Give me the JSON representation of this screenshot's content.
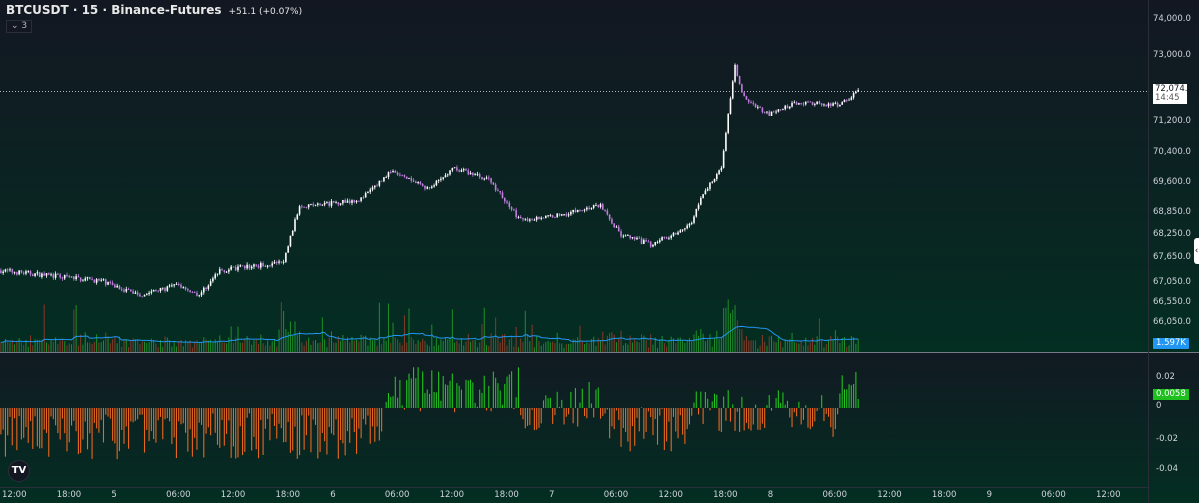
{
  "header": {
    "symbol_line": "BTCUSDT · 15 · Binance-Futures",
    "change": "+51.1 (+0.07%)",
    "indicators_toggle": "⌄ 3"
  },
  "colors": {
    "up": "#ffffff",
    "down": "#c27ce0",
    "vol_up": "#26a62a",
    "vol_down": "#a63d2a",
    "vol_ma": "#2196f3",
    "osc_pos": "#22c21f",
    "osc_neg": "#e8681f"
  },
  "chart_data": {
    "type": "candlestick",
    "price_axis": {
      "ticks": [
        "74,000.0",
        "73,000.0",
        "71,200.0",
        "70,400.0",
        "69,600.0",
        "68,850.0",
        "68,250.0",
        "67,650.0",
        "67,050.0",
        "66,550.0",
        "66,050.0"
      ],
      "last_price": "72,074.7",
      "countdown": "14:45",
      "last_price_value": 72074.7
    },
    "time_axis": {
      "ticks": [
        "12:00",
        "18:00",
        "5",
        "06:00",
        "12:00",
        "18:00",
        "6",
        "06:00",
        "12:00",
        "18:00",
        "7",
        "06:00",
        "12:00",
        "18:00",
        "8",
        "06:00",
        "12:00",
        "18:00",
        "9",
        "06:00",
        "12:00"
      ]
    },
    "price_path": [
      [
        "4 11:00",
        67350
      ],
      [
        "4 22:00",
        67100
      ],
      [
        "5 02:15",
        66750
      ],
      [
        "5 06:30",
        67000
      ],
      [
        "5 08:45",
        66750
      ],
      [
        "5 11:00",
        67350
      ],
      [
        "5 18:00",
        67550
      ],
      [
        "5 19:45",
        69050
      ],
      [
        "5 22:00",
        69050
      ],
      [
        "6 02:30",
        69200
      ],
      [
        "6 05:45",
        69900
      ],
      [
        "6 10:00",
        69450
      ],
      [
        "6 12:45",
        70000
      ],
      [
        "6 16:30",
        69700
      ],
      [
        "6 20:00",
        68650
      ],
      [
        "7 00:15",
        68800
      ],
      [
        "7 04:45",
        69050
      ],
      [
        "7 07:00",
        68250
      ],
      [
        "7 10:15",
        68000
      ],
      [
        "7 14:30",
        68500
      ],
      [
        "7 15:45",
        69200
      ],
      [
        "7 18:00",
        70050
      ],
      [
        "7 19:30",
        72700
      ],
      [
        "7 20:30",
        71850
      ],
      [
        "7 23:15",
        71400
      ],
      [
        "8 02:30",
        71750
      ],
      [
        "8 07:00",
        71650
      ],
      [
        "8 09:00",
        72074.7
      ]
    ],
    "volume": {
      "label": "1.597K"
    },
    "oscillator": {
      "ticks": [
        "0.02",
        "0",
        "-0.02",
        "-0.04"
      ],
      "last_value": "0.0058",
      "last": 0.0058,
      "range": [
        -0.045,
        0.03
      ]
    }
  }
}
